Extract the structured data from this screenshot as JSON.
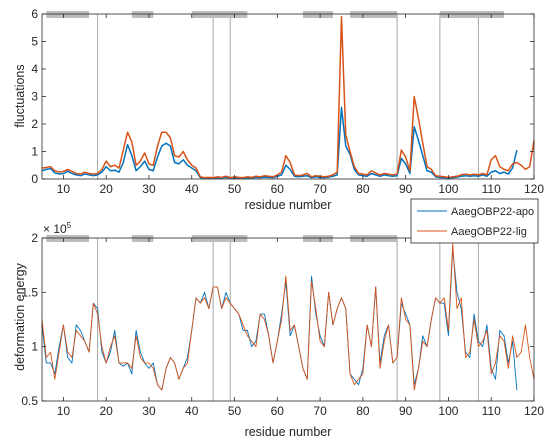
{
  "chart_data": [
    {
      "type": "line",
      "xlabel": "residue number",
      "ylabel": "fluctuations",
      "xlim": [
        5,
        120
      ],
      "ylim": [
        0,
        6
      ],
      "xticks": [
        10,
        20,
        30,
        40,
        50,
        60,
        70,
        80,
        90,
        100,
        110,
        120
      ],
      "yticks": [
        0,
        1,
        2,
        3,
        4,
        5,
        6
      ],
      "grid": false,
      "vlines": [
        18,
        45,
        49,
        88,
        98,
        107
      ],
      "segments": [
        [
          6,
          16
        ],
        [
          26,
          31
        ],
        [
          40,
          53
        ],
        [
          66,
          73
        ],
        [
          77,
          88
        ],
        [
          98,
          113
        ]
      ],
      "series": [
        {
          "name": "AaegOBP22-apo",
          "color": "#0072bd",
          "x": [
            5,
            6,
            7,
            8,
            9,
            10,
            11,
            12,
            13,
            14,
            15,
            16,
            17,
            18,
            19,
            20,
            21,
            22,
            23,
            24,
            25,
            26,
            27,
            28,
            29,
            30,
            31,
            32,
            33,
            34,
            35,
            36,
            37,
            38,
            39,
            40,
            41,
            42,
            43,
            44,
            45,
            46,
            47,
            48,
            49,
            50,
            51,
            52,
            53,
            54,
            55,
            56,
            57,
            58,
            59,
            60,
            61,
            62,
            63,
            64,
            65,
            66,
            67,
            68,
            69,
            70,
            71,
            72,
            73,
            74,
            75,
            76,
            77,
            78,
            79,
            80,
            81,
            82,
            83,
            84,
            85,
            86,
            87,
            88,
            89,
            90,
            91,
            92,
            93,
            94,
            95,
            96,
            97,
            98,
            99,
            100,
            101,
            102,
            103,
            104,
            105,
            106,
            107,
            108,
            109,
            110,
            111,
            112,
            113,
            114,
            115,
            116
          ],
          "values": [
            0.3,
            0.35,
            0.38,
            0.22,
            0.18,
            0.2,
            0.28,
            0.2,
            0.15,
            0.12,
            0.18,
            0.15,
            0.12,
            0.15,
            0.25,
            0.45,
            0.3,
            0.32,
            0.25,
            0.6,
            1.25,
            0.85,
            0.3,
            0.45,
            0.65,
            0.35,
            0.3,
            0.8,
            1.2,
            1.3,
            1.2,
            0.6,
            0.55,
            0.7,
            0.5,
            0.4,
            0.3,
            0.05,
            0.03,
            0.04,
            0.03,
            0.05,
            0.04,
            0.06,
            0.03,
            0.05,
            0.04,
            0.03,
            0.05,
            0.04,
            0.06,
            0.05,
            0.07,
            0.06,
            0.05,
            0.1,
            0.15,
            0.5,
            0.35,
            0.1,
            0.08,
            0.1,
            0.12,
            0.05,
            0.08,
            0.06,
            0.05,
            0.07,
            0.1,
            0.15,
            2.6,
            1.2,
            0.9,
            0.35,
            0.15,
            0.12,
            0.1,
            0.2,
            0.15,
            0.1,
            0.15,
            0.12,
            0.1,
            0.12,
            0.75,
            0.55,
            0.2,
            1.9,
            1.4,
            0.85,
            0.3,
            0.25,
            0.08,
            0.06,
            0.05,
            0.04,
            0.05,
            0.07,
            0.1,
            0.12,
            0.1,
            0.12,
            0.1,
            0.15,
            0.1,
            0.25,
            0.3,
            0.2,
            0.25,
            0.18,
            0.4,
            1.05
          ]
        },
        {
          "name": "AaegOBP22-lig",
          "color": "#d95319",
          "x": [
            5,
            6,
            7,
            8,
            9,
            10,
            11,
            12,
            13,
            14,
            15,
            16,
            17,
            18,
            19,
            20,
            21,
            22,
            23,
            24,
            25,
            26,
            27,
            28,
            29,
            30,
            31,
            32,
            33,
            34,
            35,
            36,
            37,
            38,
            39,
            40,
            41,
            42,
            43,
            44,
            45,
            46,
            47,
            48,
            49,
            50,
            51,
            52,
            53,
            54,
            55,
            56,
            57,
            58,
            59,
            60,
            61,
            62,
            63,
            64,
            65,
            66,
            67,
            68,
            69,
            70,
            71,
            72,
            73,
            74,
            75,
            76,
            77,
            78,
            79,
            80,
            81,
            82,
            83,
            84,
            85,
            86,
            87,
            88,
            89,
            90,
            91,
            92,
            93,
            94,
            95,
            96,
            97,
            98,
            99,
            100,
            101,
            102,
            103,
            104,
            105,
            106,
            107,
            108,
            109,
            110,
            111,
            112,
            113,
            114,
            115,
            116,
            117,
            118,
            119,
            120
          ],
          "values": [
            0.4,
            0.42,
            0.45,
            0.3,
            0.25,
            0.28,
            0.35,
            0.28,
            0.2,
            0.18,
            0.25,
            0.2,
            0.18,
            0.2,
            0.35,
            0.65,
            0.45,
            0.5,
            0.4,
            1.05,
            1.7,
            1.35,
            0.5,
            0.65,
            0.95,
            0.55,
            0.5,
            1.2,
            1.7,
            1.7,
            1.5,
            0.85,
            0.8,
            1.0,
            0.7,
            0.5,
            0.4,
            0.08,
            0.05,
            0.06,
            0.05,
            0.08,
            0.06,
            0.1,
            0.05,
            0.08,
            0.06,
            0.05,
            0.08,
            0.06,
            0.1,
            0.08,
            0.12,
            0.1,
            0.08,
            0.15,
            0.25,
            0.85,
            0.6,
            0.15,
            0.12,
            0.15,
            0.2,
            0.08,
            0.12,
            0.1,
            0.08,
            0.1,
            0.15,
            0.25,
            5.9,
            1.6,
            1.0,
            0.45,
            0.2,
            0.18,
            0.15,
            0.3,
            0.22,
            0.15,
            0.2,
            0.18,
            0.15,
            0.18,
            1.05,
            0.8,
            0.3,
            3.0,
            2.2,
            1.3,
            0.45,
            0.35,
            0.12,
            0.1,
            0.08,
            0.06,
            0.08,
            0.1,
            0.15,
            0.18,
            0.15,
            0.18,
            0.15,
            0.2,
            0.15,
            0.7,
            0.85,
            0.45,
            0.35,
            0.3,
            0.55,
            0.6,
            0.5,
            0.35,
            0.45,
            1.4
          ]
        }
      ]
    },
    {
      "type": "line",
      "xlabel": "residue number",
      "ylabel": "deformation energy",
      "y_exponent": "× 10",
      "y_exponent_power": "5",
      "xlim": [
        5,
        120
      ],
      "ylim": [
        0.5,
        2.0
      ],
      "xticks": [
        10,
        20,
        30,
        40,
        50,
        60,
        70,
        80,
        90,
        100,
        110,
        120
      ],
      "yticks": [
        0.5,
        1.0,
        1.5,
        2.0
      ],
      "ytick_labels": [
        "0.5",
        "1",
        "1.5",
        "2"
      ],
      "grid": false,
      "legend": {
        "placement": "top-right",
        "entries": [
          "AaegOBP22-apo",
          "AaegOBP22-lig"
        ]
      },
      "vlines": [
        18,
        45,
        49,
        88,
        98,
        107
      ],
      "segments": [
        [
          6,
          16
        ],
        [
          26,
          31
        ],
        [
          40,
          53
        ],
        [
          66,
          73
        ],
        [
          77,
          88
        ],
        [
          98,
          113
        ]
      ],
      "series": [
        {
          "name": "AaegOBP22-apo",
          "color": "#0072bd",
          "x": [
            5,
            6,
            7,
            8,
            9,
            10,
            11,
            12,
            13,
            14,
            15,
            16,
            17,
            18,
            19,
            20,
            21,
            22,
            23,
            24,
            25,
            26,
            27,
            28,
            29,
            30,
            31,
            32,
            33,
            34,
            35,
            36,
            37,
            38,
            39,
            40,
            41,
            42,
            43,
            44,
            45,
            46,
            47,
            48,
            49,
            50,
            51,
            52,
            53,
            54,
            55,
            56,
            57,
            58,
            59,
            60,
            61,
            62,
            63,
            64,
            65,
            66,
            67,
            68,
            69,
            70,
            71,
            72,
            73,
            74,
            75,
            76,
            77,
            78,
            79,
            80,
            81,
            82,
            83,
            84,
            85,
            86,
            87,
            88,
            89,
            90,
            91,
            92,
            93,
            94,
            95,
            96,
            97,
            98,
            99,
            100,
            101,
            102,
            103,
            104,
            105,
            106,
            107,
            108,
            109,
            110,
            111,
            112,
            113,
            114,
            115,
            116
          ],
          "values": [
            1.2,
            0.85,
            0.85,
            0.75,
            1.0,
            1.2,
            0.9,
            0.85,
            1.2,
            1.15,
            1.05,
            0.95,
            1.4,
            1.35,
            0.95,
            0.85,
            0.95,
            1.15,
            0.85,
            0.82,
            0.85,
            0.75,
            1.15,
            0.95,
            0.85,
            0.8,
            0.85,
            0.65,
            0.6,
            0.8,
            0.9,
            0.85,
            0.7,
            0.8,
            0.9,
            1.15,
            1.45,
            1.4,
            1.5,
            1.35,
            1.55,
            1.55,
            1.35,
            1.5,
            1.4,
            1.35,
            1.3,
            1.15,
            1.15,
            1.0,
            1.05,
            1.3,
            1.3,
            1.1,
            0.85,
            1.05,
            1.3,
            1.6,
            1.1,
            1.2,
            1.0,
            0.8,
            0.7,
            1.65,
            1.3,
            1.1,
            1.0,
            1.5,
            1.2,
            1.35,
            1.45,
            1.35,
            0.75,
            0.7,
            0.65,
            0.8,
            1.2,
            1.0,
            1.55,
            0.85,
            1.1,
            1.2,
            0.85,
            0.9,
            1.4,
            1.3,
            1.2,
            0.65,
            0.8,
            1.1,
            1.0,
            1.25,
            1.45,
            1.4,
            1.4,
            1.1,
            1.9,
            1.5,
            1.35,
            0.95,
            0.9,
            1.3,
            1.05,
            1.0,
            1.2,
            0.8,
            0.7,
            1.15,
            1.1,
            0.85,
            1.05,
            0.6
          ]
        },
        {
          "name": "AaegOBP22-lig",
          "color": "#d95319",
          "x": [
            5,
            6,
            7,
            8,
            9,
            10,
            11,
            12,
            13,
            14,
            15,
            16,
            17,
            18,
            19,
            20,
            21,
            22,
            23,
            24,
            25,
            26,
            27,
            28,
            29,
            30,
            31,
            32,
            33,
            34,
            35,
            36,
            37,
            38,
            39,
            40,
            41,
            42,
            43,
            44,
            45,
            46,
            47,
            48,
            49,
            50,
            51,
            52,
            53,
            54,
            55,
            56,
            57,
            58,
            59,
            60,
            61,
            62,
            63,
            64,
            65,
            66,
            67,
            68,
            69,
            70,
            71,
            72,
            73,
            74,
            75,
            76,
            77,
            78,
            79,
            80,
            81,
            82,
            83,
            84,
            85,
            86,
            87,
            88,
            89,
            90,
            91,
            92,
            93,
            94,
            95,
            96,
            97,
            98,
            99,
            100,
            101,
            102,
            103,
            104,
            105,
            106,
            107,
            108,
            109,
            110,
            111,
            112,
            113,
            114,
            115,
            116,
            117,
            118,
            119,
            120
          ],
          "values": [
            1.25,
            0.9,
            0.95,
            0.7,
            0.95,
            1.2,
            0.95,
            0.9,
            1.15,
            1.1,
            1.05,
            0.95,
            1.4,
            1.3,
            1.0,
            0.85,
            1.0,
            1.1,
            0.85,
            0.85,
            0.85,
            0.8,
            1.1,
            0.9,
            0.85,
            0.85,
            0.8,
            0.65,
            0.6,
            0.8,
            0.9,
            0.85,
            0.7,
            0.8,
            0.85,
            1.15,
            1.45,
            1.4,
            1.45,
            1.35,
            1.55,
            1.55,
            1.35,
            1.45,
            1.4,
            1.35,
            1.3,
            1.2,
            1.1,
            1.05,
            1.0,
            1.3,
            1.25,
            1.1,
            0.85,
            1.05,
            1.25,
            1.65,
            1.15,
            1.2,
            1.0,
            0.8,
            0.7,
            1.6,
            1.35,
            1.05,
            1.0,
            1.5,
            1.2,
            1.35,
            1.45,
            1.35,
            0.75,
            0.65,
            0.7,
            0.75,
            1.2,
            1.0,
            1.55,
            0.8,
            1.05,
            1.2,
            0.85,
            0.9,
            1.45,
            1.25,
            1.2,
            0.6,
            0.8,
            1.05,
            1.0,
            1.25,
            1.45,
            1.4,
            1.45,
            1.15,
            1.95,
            1.35,
            1.45,
            0.9,
            0.95,
            1.25,
            1.0,
            1.05,
            1.15,
            0.75,
            0.85,
            1.1,
            1.05,
            0.8,
            1.1,
            0.9,
            0.95,
            1.2,
            0.9,
            0.7
          ]
        }
      ]
    }
  ]
}
